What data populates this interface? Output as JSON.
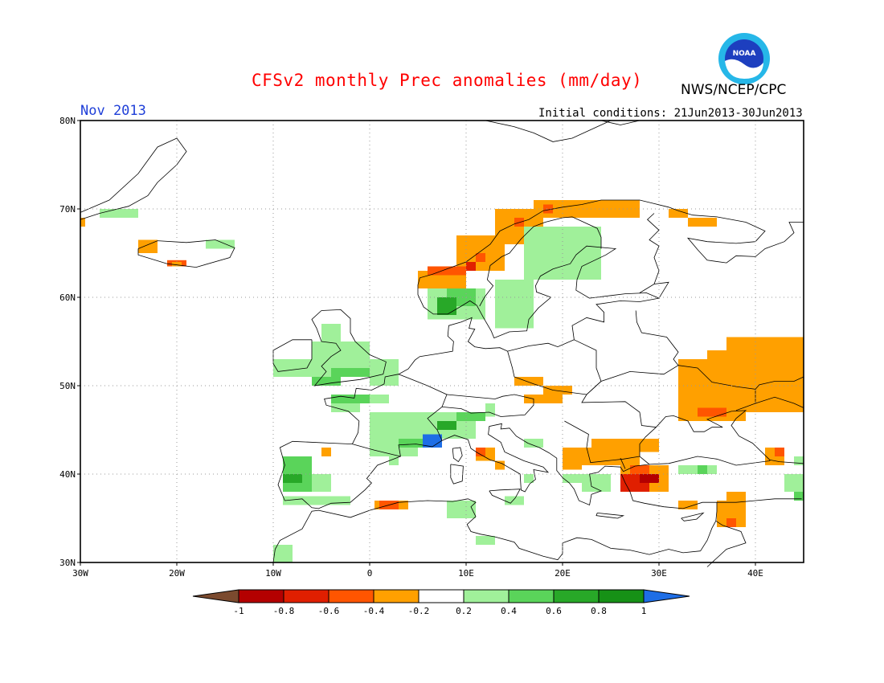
{
  "header": {
    "title": "CFSv2 monthly Prec anomalies (mm/day)",
    "title_color": "#ff0000",
    "org": "NWS/NCEP/CPC",
    "month": "Nov 2013",
    "month_color": "#1f3fd8",
    "initial_conditions": "Initial conditions: 21Jun2013-30Jun2013",
    "logo": "noaa-logo"
  },
  "map": {
    "lon_range": [
      -30,
      45
    ],
    "lat_range": [
      30,
      80
    ],
    "lat_labels": [
      "30N",
      "40N",
      "50N",
      "60N",
      "70N",
      "80N"
    ],
    "lon_labels": [
      "30W",
      "20W",
      "10W",
      "0",
      "10E",
      "20E",
      "30E",
      "40E"
    ],
    "grid": "dotted"
  },
  "colorbar": {
    "labels": [
      "-1",
      "-0.8",
      "-0.6",
      "-0.4",
      "-0.2",
      "0.2",
      "0.4",
      "0.6",
      "0.8",
      "1"
    ],
    "colors": {
      "lt_-1": "#7b4a2e",
      "-1_-0.8": "#b40000",
      "-0.8_-0.6": "#e01f00",
      "-0.6_-0.4": "#ff5500",
      "-0.4_-0.2": "#ffa000",
      "-0.2_0.2": "#ffffff",
      "0.2_0.4": "#a0f09a",
      "0.4_0.6": "#5ad45a",
      "0.6_0.8": "#28a828",
      "0.8_1": "#169116",
      "gt_1": "#1e6ee6"
    }
  },
  "anomalies": [
    {
      "lon": [
        -30,
        -29.5
      ],
      "lat": [
        68,
        69
      ],
      "level": "-0.4_-0.2"
    },
    {
      "lon": [
        -28,
        -24
      ],
      "lat": [
        69,
        70
      ],
      "level": "0.2_0.4"
    },
    {
      "lon": [
        -24,
        -22
      ],
      "lat": [
        65,
        66.5
      ],
      "level": "-0.4_-0.2"
    },
    {
      "lon": [
        -17,
        -14
      ],
      "lat": [
        65.5,
        66.5
      ],
      "level": "0.2_0.4"
    },
    {
      "lon": [
        -21,
        -19
      ],
      "lat": [
        63.5,
        64.2
      ],
      "level": "-0.6_-0.4"
    },
    {
      "lon": [
        -20.5,
        -19.5
      ],
      "lat": [
        63.5,
        64
      ],
      "level": "-0.4_-0.2"
    },
    {
      "lon": [
        -5,
        -3
      ],
      "lat": [
        55,
        57
      ],
      "level": "0.2_0.4"
    },
    {
      "lon": [
        -6,
        0
      ],
      "lat": [
        51,
        55
      ],
      "level": "0.2_0.4"
    },
    {
      "lon": [
        -4,
        1
      ],
      "lat": [
        51,
        52
      ],
      "level": "0.4_0.6"
    },
    {
      "lon": [
        -6,
        -3
      ],
      "lat": [
        50,
        51
      ],
      "level": "0.4_0.6"
    },
    {
      "lon": [
        0,
        3
      ],
      "lat": [
        50,
        53
      ],
      "level": "0.2_0.4"
    },
    {
      "lon": [
        -10,
        -6
      ],
      "lat": [
        51,
        53
      ],
      "level": "0.2_0.4"
    },
    {
      "lon": [
        -4,
        1
      ],
      "lat": [
        48,
        49
      ],
      "level": "0.4_0.6"
    },
    {
      "lon": [
        -4,
        -1
      ],
      "lat": [
        47,
        48
      ],
      "level": "0.2_0.4"
    },
    {
      "lon": [
        0,
        2
      ],
      "lat": [
        48,
        49
      ],
      "level": "0.2_0.4"
    },
    {
      "lon": [
        0,
        5
      ],
      "lat": [
        42,
        47
      ],
      "level": "0.2_0.4"
    },
    {
      "lon": [
        5,
        11
      ],
      "lat": [
        44,
        47
      ],
      "level": "0.2_0.4"
    },
    {
      "lon": [
        3,
        7
      ],
      "lat": [
        43,
        44
      ],
      "level": "0.4_0.6"
    },
    {
      "lon": [
        5.5,
        7.5
      ],
      "lat": [
        43,
        44.5
      ],
      "level": "gt_1"
    },
    {
      "lon": [
        7,
        9
      ],
      "lat": [
        45,
        46
      ],
      "level": "0.6_0.8"
    },
    {
      "lon": [
        9,
        12
      ],
      "lat": [
        46,
        47
      ],
      "level": "0.4_0.6"
    },
    {
      "lon": [
        12,
        13
      ],
      "lat": [
        46.5,
        48
      ],
      "level": "0.2_0.4"
    },
    {
      "lon": [
        2,
        3
      ],
      "lat": [
        41,
        42
      ],
      "level": "0.2_0.4"
    },
    {
      "lon": [
        -9,
        -6
      ],
      "lat": [
        38,
        42
      ],
      "level": "0.4_0.6"
    },
    {
      "lon": [
        -9,
        -7
      ],
      "lat": [
        39,
        40
      ],
      "level": "0.6_0.8"
    },
    {
      "lon": [
        -6,
        -4
      ],
      "lat": [
        38,
        40
      ],
      "level": "0.2_0.4"
    },
    {
      "lon": [
        -9,
        -2
      ],
      "lat": [
        36.5,
        37.5
      ],
      "level": "0.2_0.4"
    },
    {
      "lon": [
        -10,
        -8
      ],
      "lat": [
        30,
        32
      ],
      "level": "0.2_0.4"
    },
    {
      "lon": [
        -5,
        -4
      ],
      "lat": [
        42,
        43
      ],
      "level": "-0.4_-0.2"
    },
    {
      "lon": [
        0.5,
        4
      ],
      "lat": [
        36,
        37
      ],
      "level": "-0.4_-0.2"
    },
    {
      "lon": [
        1,
        3
      ],
      "lat": [
        36,
        37
      ],
      "level": "-0.6_-0.4"
    },
    {
      "lon": [
        8,
        11
      ],
      "lat": [
        35,
        37
      ],
      "level": "0.2_0.4"
    },
    {
      "lon": [
        11,
        13
      ],
      "lat": [
        32,
        33
      ],
      "level": "0.2_0.4"
    },
    {
      "lon": [
        14,
        16
      ],
      "lat": [
        36.5,
        37.5
      ],
      "level": "0.2_0.4"
    },
    {
      "lon": [
        11,
        13
      ],
      "lat": [
        41.5,
        43
      ],
      "level": "-0.4_-0.2"
    },
    {
      "lon": [
        11,
        12
      ],
      "lat": [
        42,
        43
      ],
      "level": "-0.6_-0.4"
    },
    {
      "lon": [
        13,
        14
      ],
      "lat": [
        40.5,
        41.5
      ],
      "level": "-0.4_-0.2"
    },
    {
      "lon": [
        16,
        18
      ],
      "lat": [
        43,
        44
      ],
      "level": "0.2_0.4"
    },
    {
      "lon": [
        16,
        17
      ],
      "lat": [
        39,
        40
      ],
      "level": "0.2_0.4"
    },
    {
      "lon": [
        15,
        18
      ],
      "lat": [
        50,
        51
      ],
      "level": "-0.4_-0.2"
    },
    {
      "lon": [
        16,
        20
      ],
      "lat": [
        48,
        49
      ],
      "level": "-0.4_-0.2"
    },
    {
      "lon": [
        18,
        21
      ],
      "lat": [
        49,
        50
      ],
      "level": "-0.4_-0.2"
    },
    {
      "lon": [
        20,
        28
      ],
      "lat": [
        41,
        43
      ],
      "level": "-0.4_-0.2"
    },
    {
      "lon": [
        23,
        30
      ],
      "lat": [
        42.5,
        44
      ],
      "level": "-0.4_-0.2"
    },
    {
      "lon": [
        20,
        22
      ],
      "lat": [
        40.5,
        41.5
      ],
      "level": "-0.4_-0.2"
    },
    {
      "lon": [
        22,
        25
      ],
      "lat": [
        38,
        40
      ],
      "level": "0.2_0.4"
    },
    {
      "lon": [
        20,
        22
      ],
      "lat": [
        39,
        40
      ],
      "level": "0.2_0.4"
    },
    {
      "lon": [
        26,
        31
      ],
      "lat": [
        38,
        41
      ],
      "level": "-0.4_-0.2"
    },
    {
      "lon": [
        26,
        29
      ],
      "lat": [
        38,
        40
      ],
      "level": "-0.8_-0.6"
    },
    {
      "lon": [
        27,
        29
      ],
      "lat": [
        40,
        41
      ],
      "level": "-0.6_-0.4"
    },
    {
      "lon": [
        28,
        30
      ],
      "lat": [
        39,
        40
      ],
      "level": "-1_-0.8"
    },
    {
      "lon": [
        32,
        36
      ],
      "lat": [
        40,
        41
      ],
      "level": "0.2_0.4"
    },
    {
      "lon": [
        34,
        35
      ],
      "lat": [
        40,
        41
      ],
      "level": "0.4_0.6"
    },
    {
      "lon": [
        32,
        34
      ],
      "lat": [
        36,
        37
      ],
      "level": "-0.4_-0.2"
    },
    {
      "lon": [
        37,
        39
      ],
      "lat": [
        37,
        38
      ],
      "level": "-0.4_-0.2"
    },
    {
      "lon": [
        36,
        39
      ],
      "lat": [
        34,
        37
      ],
      "level": "-0.4_-0.2"
    },
    {
      "lon": [
        37,
        38
      ],
      "lat": [
        34,
        35
      ],
      "level": "-0.6_-0.4"
    },
    {
      "lon": [
        41,
        43
      ],
      "lat": [
        41,
        43
      ],
      "level": "-0.4_-0.2"
    },
    {
      "lon": [
        42,
        43
      ],
      "lat": [
        42,
        43
      ],
      "level": "-0.6_-0.4"
    },
    {
      "lon": [
        43,
        45
      ],
      "lat": [
        38,
        40
      ],
      "level": "0.2_0.4"
    },
    {
      "lon": [
        44,
        45
      ],
      "lat": [
        37,
        38
      ],
      "level": "0.4_0.6"
    },
    {
      "lon": [
        44,
        45
      ],
      "lat": [
        41,
        42
      ],
      "level": "0.2_0.4"
    },
    {
      "lon": [
        32,
        45
      ],
      "lat": [
        47,
        53
      ],
      "level": "-0.4_-0.2"
    },
    {
      "lon": [
        35,
        45
      ],
      "lat": [
        53,
        54
      ],
      "level": "-0.4_-0.2"
    },
    {
      "lon": [
        37,
        45
      ],
      "lat": [
        54,
        55.5
      ],
      "level": "-0.4_-0.2"
    },
    {
      "lon": [
        32,
        39
      ],
      "lat": [
        46,
        47
      ],
      "level": "-0.4_-0.2"
    },
    {
      "lon": [
        34,
        37
      ],
      "lat": [
        46.5,
        47.5
      ],
      "level": "-0.6_-0.4"
    },
    {
      "lon": [
        33,
        36
      ],
      "lat": [
        68,
        69
      ],
      "level": "-0.4_-0.2"
    },
    {
      "lon": [
        31,
        33
      ],
      "lat": [
        69,
        70
      ],
      "level": "-0.4_-0.2"
    },
    {
      "lon": [
        17,
        28
      ],
      "lat": [
        69,
        71
      ],
      "level": "-0.4_-0.2"
    },
    {
      "lon": [
        13,
        18
      ],
      "lat": [
        66,
        70
      ],
      "level": "-0.4_-0.2"
    },
    {
      "lon": [
        9,
        14
      ],
      "lat": [
        63,
        67
      ],
      "level": "-0.4_-0.2"
    },
    {
      "lon": [
        5,
        10
      ],
      "lat": [
        61,
        63
      ],
      "level": "-0.4_-0.2"
    },
    {
      "lon": [
        6,
        10
      ],
      "lat": [
        62.5,
        63.5
      ],
      "level": "-0.6_-0.4"
    },
    {
      "lon": [
        10,
        11
      ],
      "lat": [
        63,
        64
      ],
      "level": "-0.8_-0.6"
    },
    {
      "lon": [
        18,
        19
      ],
      "lat": [
        69.5,
        70.5
      ],
      "level": "-0.6_-0.4"
    },
    {
      "lon": [
        15,
        16
      ],
      "lat": [
        68,
        69
      ],
      "level": "-0.6_-0.4"
    },
    {
      "lon": [
        11,
        12
      ],
      "lat": [
        64,
        65
      ],
      "level": "-0.6_-0.4"
    },
    {
      "lon": [
        16,
        24
      ],
      "lat": [
        62,
        68
      ],
      "level": "0.2_0.4"
    },
    {
      "lon": [
        13,
        17
      ],
      "lat": [
        56.5,
        62
      ],
      "level": "0.2_0.4"
    },
    {
      "lon": [
        6,
        12
      ],
      "lat": [
        57.5,
        61
      ],
      "level": "0.2_0.4"
    },
    {
      "lon": [
        8,
        11
      ],
      "lat": [
        59,
        61
      ],
      "level": "0.4_0.6"
    },
    {
      "lon": [
        7,
        9
      ],
      "lat": [
        58,
        60
      ],
      "level": "0.6_0.8"
    }
  ]
}
